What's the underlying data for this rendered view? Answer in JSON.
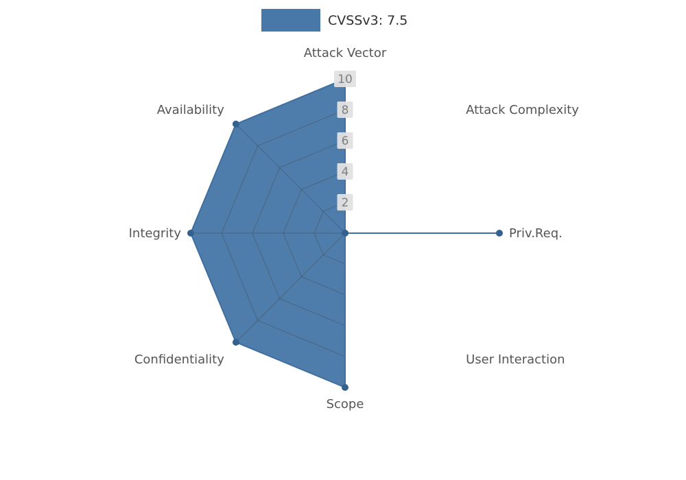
{
  "legend": {
    "label": "CVSSv3: 7.5"
  },
  "chart_data": {
    "type": "radar",
    "title": "CVSSv3: 7.5",
    "categories": [
      "Attack Vector",
      "Attack Complexity",
      "Priv.Req.",
      "User Interaction",
      "Scope",
      "Confidentiality",
      "Integrity",
      "Availability"
    ],
    "series": [
      {
        "name": "CVSSv3: 7.5",
        "values": [
          10,
          0,
          10,
          0,
          10,
          10,
          10,
          10
        ]
      }
    ],
    "ticks": [
      2,
      4,
      6,
      8,
      10
    ],
    "rmax": 10,
    "start_axis": "top",
    "direction": "clockwise",
    "legend_position": "top",
    "grid": true,
    "colors": {
      "fill": "#4878a8",
      "stroke": "#3e6fa0",
      "marker": "#35618f",
      "grid_line": "#4a4a4a",
      "tick_text": "#7f7f7f",
      "tick_bg": "#e2e2e2",
      "label_text": "#555555",
      "legend_text": "#2e2e2e",
      "background": "#ffffff"
    }
  }
}
